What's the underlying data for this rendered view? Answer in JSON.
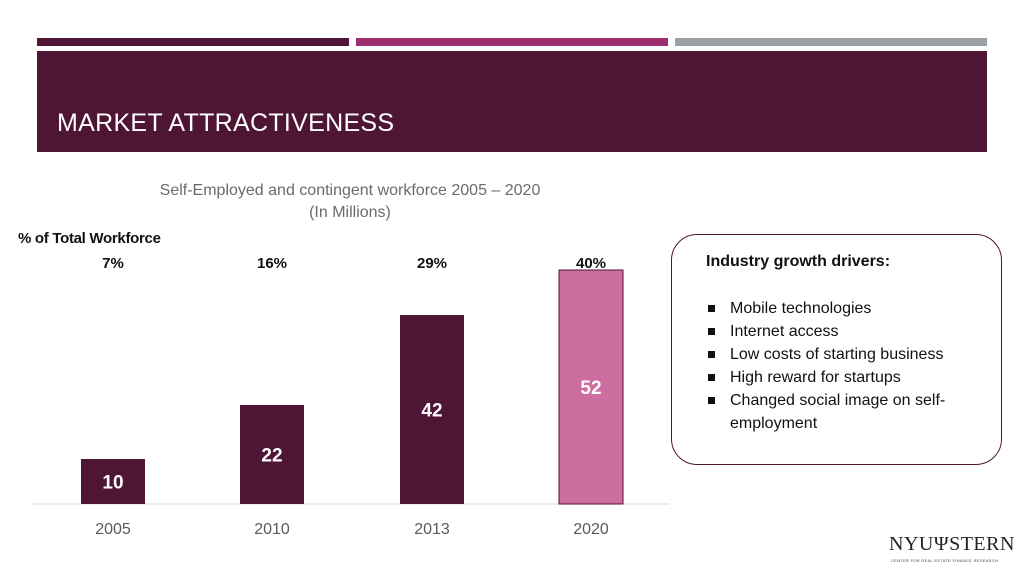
{
  "colors": {
    "stripe1": "#4e1634",
    "stripe2": "#9e2f6f",
    "stripe3": "#9aa0a6",
    "title_band": "#4e1634",
    "bar_primary": "#4e1634",
    "bar_highlight": "#cd6ea0",
    "axis_label": "#595959"
  },
  "header": {
    "title": "MARKET ATTRACTIVENESS"
  },
  "chart_data": {
    "type": "bar",
    "title": "Self-Employed and contingent workforce 2005 – 2020",
    "subtitle": "(In Millions)",
    "categories": [
      "2005",
      "2010",
      "2013",
      "2020"
    ],
    "values": [
      10,
      22,
      42,
      52
    ],
    "highlight_index": 3,
    "ylim": [
      0,
      60
    ],
    "grid": false,
    "pct_label": "% of Total Workforce",
    "pct_values": [
      "7%",
      "16%",
      "29%",
      "40%"
    ]
  },
  "drivers": {
    "heading": "Industry growth drivers:",
    "items": [
      "Mobile technologies",
      "Internet access",
      "Low costs of starting business",
      "High reward for startups",
      "Changed social image on self-employment"
    ]
  },
  "logo": {
    "text": "NYUΨSTERN",
    "subtext": "CENTER FOR REAL ESTATE FINANCE RESEARCH"
  }
}
